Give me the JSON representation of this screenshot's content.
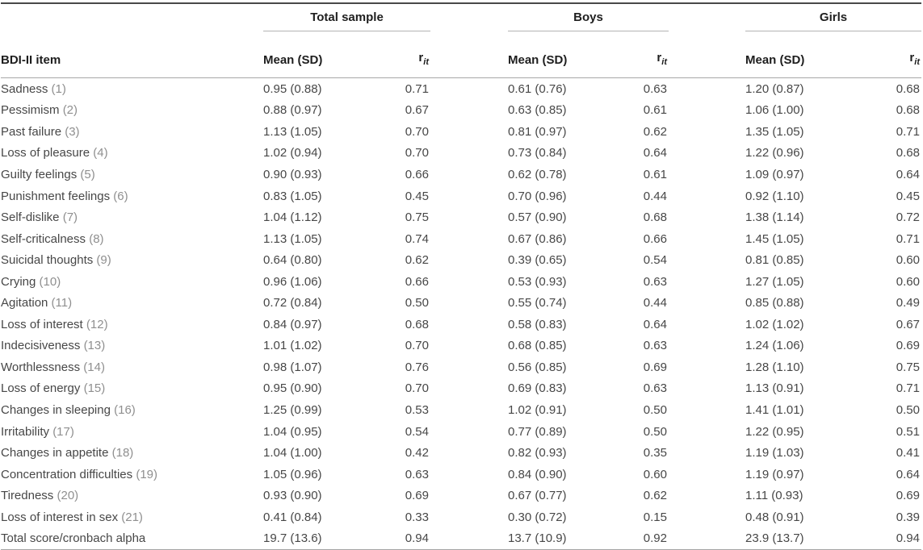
{
  "table": {
    "item_header": "BDI-II item",
    "mean_header": "Mean (SD)",
    "rit_base": "r",
    "rit_sub": "it",
    "groups": [
      {
        "label": "Total sample"
      },
      {
        "label": "Boys"
      },
      {
        "label": "Girls"
      }
    ],
    "rows": [
      {
        "item": "Sadness",
        "num": "(1)",
        "cells": [
          "0.95 (0.88)",
          "0.71",
          "0.61 (0.76)",
          "0.63",
          "1.20 (0.87)",
          "0.68"
        ]
      },
      {
        "item": "Pessimism",
        "num": "(2)",
        "cells": [
          "0.88 (0.97)",
          "0.67",
          "0.63 (0.85)",
          "0.61",
          "1.06 (1.00)",
          "0.68"
        ]
      },
      {
        "item": "Past failure",
        "num": "(3)",
        "cells": [
          "1.13 (1.05)",
          "0.70",
          "0.81 (0.97)",
          "0.62",
          "1.35 (1.05)",
          "0.71"
        ]
      },
      {
        "item": "Loss of pleasure",
        "num": "(4)",
        "cells": [
          "1.02 (0.94)",
          "0.70",
          "0.73 (0.84)",
          "0.64",
          "1.22 (0.96)",
          "0.68"
        ]
      },
      {
        "item": "Guilty feelings",
        "num": "(5)",
        "cells": [
          "0.90 (0.93)",
          "0.66",
          "0.62 (0.78)",
          "0.61",
          "1.09 (0.97)",
          "0.64"
        ]
      },
      {
        "item": "Punishment feelings",
        "num": "(6)",
        "cells": [
          "0.83 (1.05)",
          "0.45",
          "0.70 (0.96)",
          "0.44",
          "0.92 (1.10)",
          "0.45"
        ]
      },
      {
        "item": "Self-dislike",
        "num": "(7)",
        "cells": [
          "1.04 (1.12)",
          "0.75",
          "0.57 (0.90)",
          "0.68",
          "1.38 (1.14)",
          "0.72"
        ]
      },
      {
        "item": "Self-criticalness",
        "num": "(8)",
        "cells": [
          "1.13 (1.05)",
          "0.74",
          "0.67 (0.86)",
          "0.66",
          "1.45 (1.05)",
          "0.71"
        ]
      },
      {
        "item": "Suicidal thoughts",
        "num": "(9)",
        "cells": [
          "0.64 (0.80)",
          "0.62",
          "0.39 (0.65)",
          "0.54",
          "0.81 (0.85)",
          "0.60"
        ]
      },
      {
        "item": "Crying",
        "num": "(10)",
        "cells": [
          "0.96 (1.06)",
          "0.66",
          "0.53 (0.93)",
          "0.63",
          "1.27 (1.05)",
          "0.60"
        ]
      },
      {
        "item": "Agitation",
        "num": "(11)",
        "cells": [
          "0.72 (0.84)",
          "0.50",
          "0.55 (0.74)",
          "0.44",
          "0.85 (0.88)",
          "0.49"
        ]
      },
      {
        "item": "Loss of interest",
        "num": "(12)",
        "cells": [
          "0.84 (0.97)",
          "0.68",
          "0.58 (0.83)",
          "0.64",
          "1.02 (1.02)",
          "0.67"
        ]
      },
      {
        "item": "Indecisiveness",
        "num": "(13)",
        "cells": [
          "1.01 (1.02)",
          "0.70",
          "0.68 (0.85)",
          "0.63",
          "1.24 (1.06)",
          "0.69"
        ]
      },
      {
        "item": "Worthlessness",
        "num": "(14)",
        "cells": [
          "0.98 (1.07)",
          "0.76",
          "0.56 (0.85)",
          "0.69",
          "1.28 (1.10)",
          "0.75"
        ]
      },
      {
        "item": "Loss of energy",
        "num": "(15)",
        "cells": [
          "0.95 (0.90)",
          "0.70",
          "0.69 (0.83)",
          "0.63",
          "1.13 (0.91)",
          "0.71"
        ]
      },
      {
        "item": "Changes in sleeping",
        "num": "(16)",
        "cells": [
          "1.25 (0.99)",
          "0.53",
          "1.02 (0.91)",
          "0.50",
          "1.41 (1.01)",
          "0.50"
        ]
      },
      {
        "item": "Irritability",
        "num": "(17)",
        "cells": [
          "1.04 (0.95)",
          "0.54",
          "0.77 (0.89)",
          "0.50",
          "1.22 (0.95)",
          "0.51"
        ]
      },
      {
        "item": "Changes in appetite",
        "num": "(18)",
        "cells": [
          "1.04 (1.00)",
          "0.42",
          "0.82 (0.93)",
          "0.35",
          "1.19 (1.03)",
          "0.41"
        ]
      },
      {
        "item": "Concentration difficulties",
        "num": "(19)",
        "cells": [
          "1.05 (0.96)",
          "0.63",
          "0.84 (0.90)",
          "0.60",
          "1.19 (0.97)",
          "0.64"
        ]
      },
      {
        "item": "Tiredness",
        "num": "(20)",
        "cells": [
          "0.93 (0.90)",
          "0.69",
          "0.67 (0.77)",
          "0.62",
          "1.11 (0.93)",
          "0.69"
        ]
      },
      {
        "item": "Loss of interest in sex",
        "num": "(21)",
        "cells": [
          "0.41 (0.84)",
          "0.33",
          "0.30 (0.72)",
          "0.15",
          "0.48 (0.91)",
          "0.39"
        ]
      },
      {
        "item": "Total score/cronbach alpha",
        "num": "",
        "cells": [
          "19.7 (13.6)",
          "0.94",
          "13.7 (10.9)",
          "0.92",
          "23.9 (13.7)",
          "0.94"
        ]
      }
    ]
  },
  "colors": {
    "top_rule": "#484848",
    "header_rule": "#a8a8a8",
    "group_rule": "#b4b4b4",
    "bottom_rule": "#a5a5a5",
    "header_text": "#1e1e1e",
    "body_text": "#474747",
    "item_number_text": "#8f8f8f",
    "background": "#ffffff"
  }
}
